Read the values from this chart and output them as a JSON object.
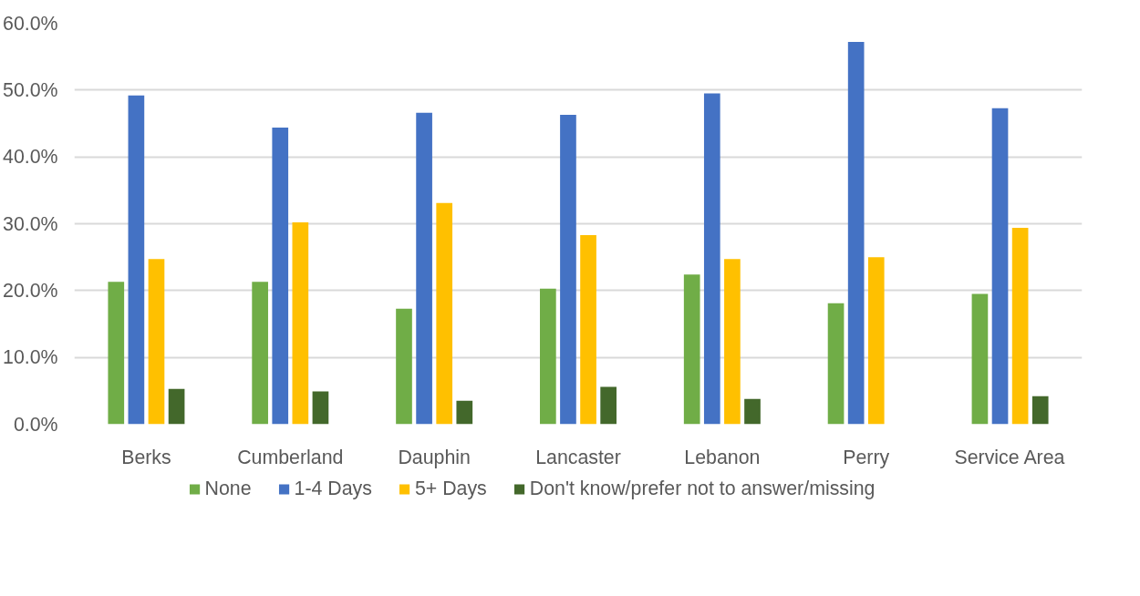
{
  "chart_data": {
    "type": "bar",
    "categories": [
      "Berks",
      "Cumberland",
      "Dauphin",
      "Lancaster",
      "Lebanon",
      "Perry",
      "Service Area"
    ],
    "series": [
      {
        "name": "None",
        "color": "#70ad47",
        "values": [
          21.3,
          21.3,
          17.3,
          20.3,
          22.4,
          18.1,
          19.5
        ]
      },
      {
        "name": "1-4 Days",
        "color": "#4472c4",
        "values": [
          49.2,
          44.4,
          46.6,
          46.3,
          49.5,
          57.2,
          47.3
        ]
      },
      {
        "name": "5+ Days",
        "color": "#ffc000",
        "values": [
          24.7,
          30.2,
          33.1,
          28.3,
          24.7,
          25.0,
          29.4
        ]
      },
      {
        "name": "Don't know/prefer not to answer/missing",
        "color": "#43682b",
        "values": [
          5.3,
          4.9,
          3.5,
          5.6,
          3.8,
          null,
          4.2
        ]
      }
    ],
    "ylim": [
      0,
      60
    ],
    "yticks": [
      {
        "value": 0,
        "label": "0.0%"
      },
      {
        "value": 10,
        "label": "10.0%"
      },
      {
        "value": 20,
        "label": "20.0%"
      },
      {
        "value": 30,
        "label": "30.0%"
      },
      {
        "value": 40,
        "label": "40.0%"
      },
      {
        "value": 50,
        "label": "50.0%"
      },
      {
        "value": 60,
        "label": "60.0%"
      }
    ],
    "grid": "y",
    "legend": "bottom"
  }
}
